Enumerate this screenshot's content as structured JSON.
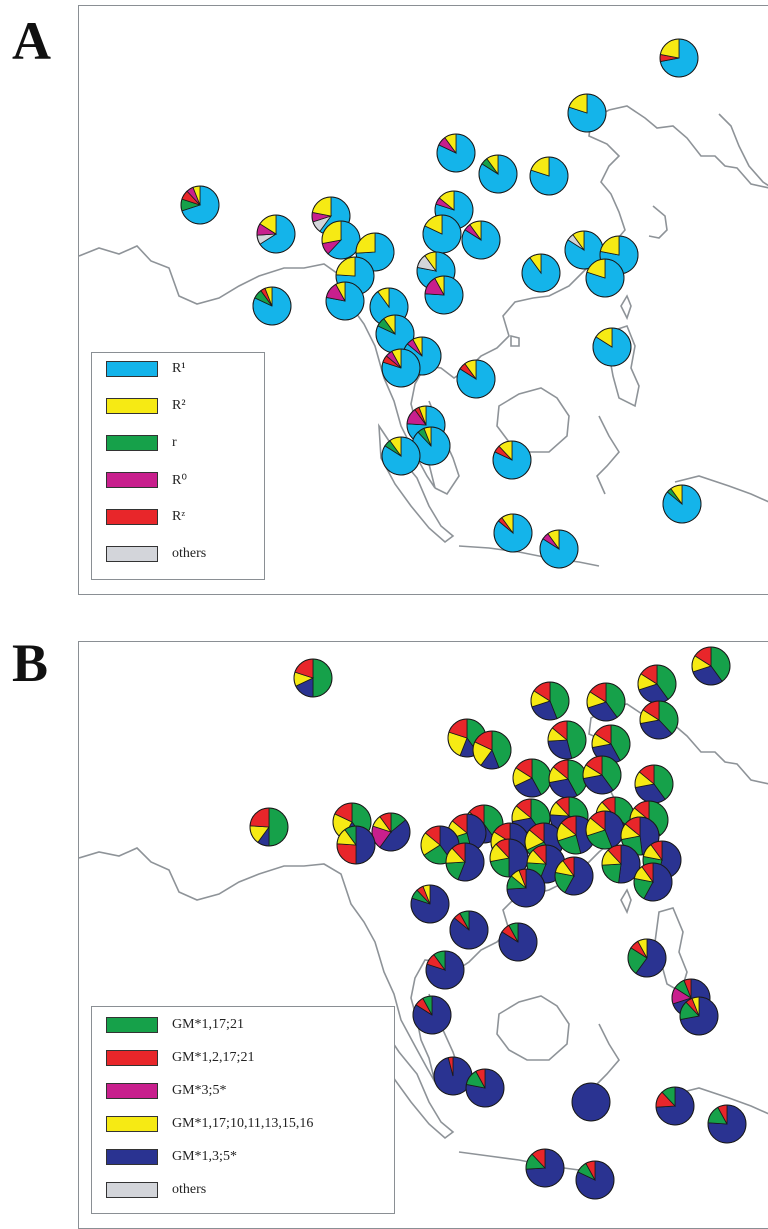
{
  "colors": {
    "cyan": "#14b4ea",
    "yellow": "#f6ea14",
    "green": "#16a14a",
    "magenta": "#c81f8d",
    "red": "#e8262a",
    "gray": "#d3d5da",
    "navy": "#2a3391",
    "coast": "#8e9398"
  },
  "panelA": {
    "letter": "A",
    "legend": [
      {
        "label": "R¹",
        "color": "#14b4ea"
      },
      {
        "label": "R²",
        "color": "#f6ea14"
      },
      {
        "label": "r",
        "color": "#16a14a"
      },
      {
        "label": "R⁰",
        "color": "#c81f8d"
      },
      {
        "label": "Rᶻ",
        "color": "#e8262a"
      },
      {
        "label": "others",
        "color": "#d3d5da"
      }
    ]
  },
  "panelB": {
    "letter": "B",
    "legend": [
      {
        "label": "GM*1,17;21",
        "color": "#16a14a"
      },
      {
        "label": "GM*1,2,17;21",
        "color": "#e8262a"
      },
      {
        "label": "GM*3;5*",
        "color": "#c81f8d"
      },
      {
        "label": "GM*1,17;10,11,13,15,16",
        "color": "#f6ea14"
      },
      {
        "label": "GM*1,3;5*",
        "color": "#2a3391"
      },
      {
        "label": "others",
        "color": "#d3d5da"
      }
    ]
  }
}
